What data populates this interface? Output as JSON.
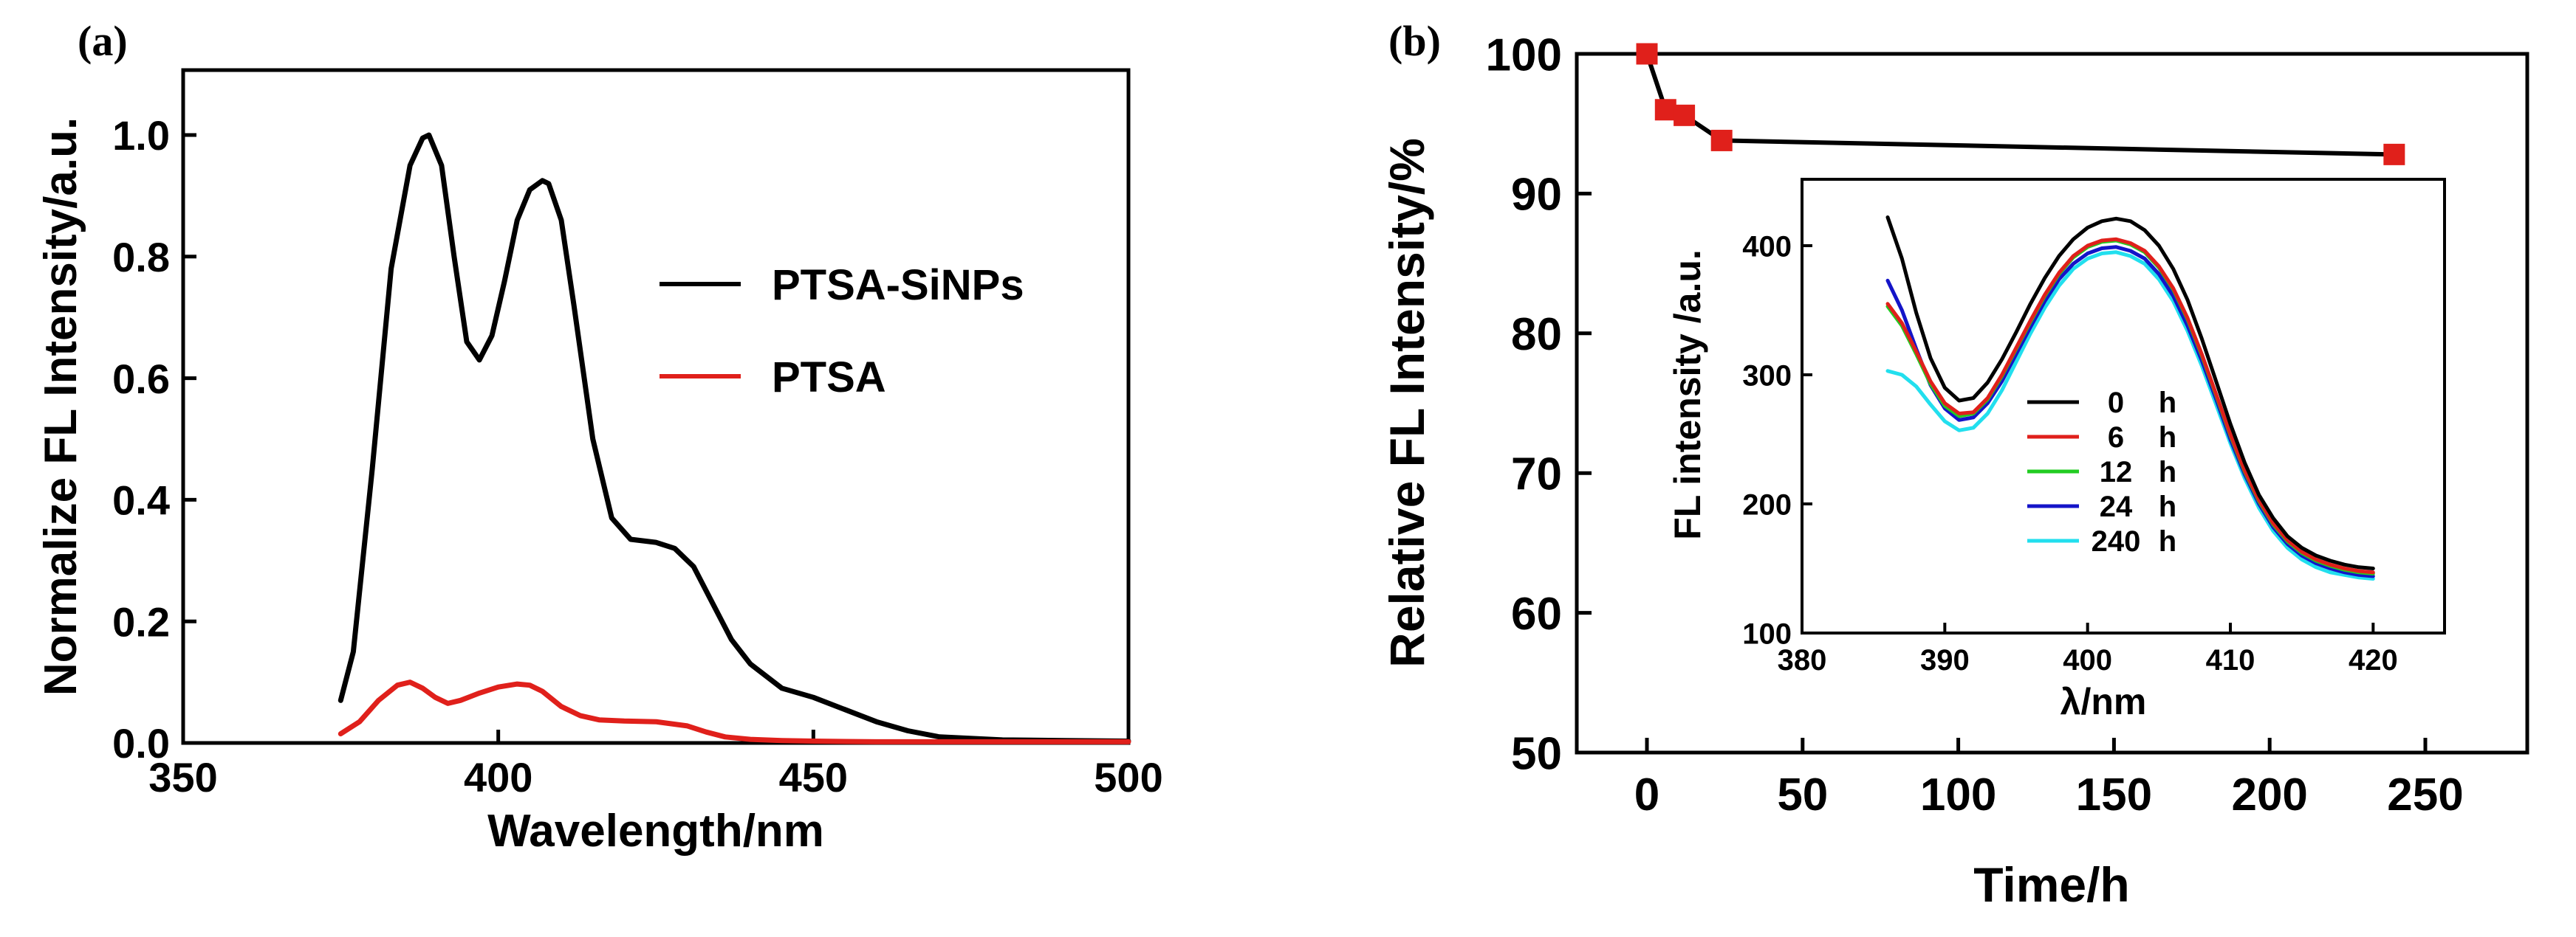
{
  "chart_data": [
    {
      "panel_label": "(a)",
      "type": "line",
      "title": "",
      "xlabel": "Wavelength/nm",
      "ylabel": "Normalize FL Intensity/a.u.",
      "xlim": [
        350,
        500
      ],
      "ylim": [
        0.0,
        1.1
      ],
      "xticks": [
        "350",
        "400",
        "450",
        "500"
      ],
      "yticks": [
        "0.0",
        "0.2",
        "0.4",
        "0.6",
        "0.8",
        "1.0"
      ],
      "legend_position": "center-right",
      "series": [
        {
          "name": "PTSA-SiNPs",
          "color": "#000000",
          "x": [
            375,
            377,
            380,
            383,
            386,
            388,
            389,
            391,
            393,
            395,
            397,
            399,
            401,
            403,
            405,
            407,
            408,
            410,
            412,
            415,
            418,
            421,
            425,
            428,
            431,
            434,
            437,
            440,
            445,
            450,
            455,
            460,
            465,
            470,
            480,
            490,
            500
          ],
          "y": [
            0.07,
            0.15,
            0.45,
            0.78,
            0.95,
            0.995,
            1.0,
            0.95,
            0.8,
            0.66,
            0.63,
            0.67,
            0.76,
            0.86,
            0.91,
            0.925,
            0.92,
            0.86,
            0.72,
            0.5,
            0.37,
            0.335,
            0.33,
            0.32,
            0.29,
            0.23,
            0.17,
            0.13,
            0.09,
            0.075,
            0.055,
            0.035,
            0.02,
            0.01,
            0.005,
            0.004,
            0.003
          ]
        },
        {
          "name": "PTSA",
          "color": "#e0201b",
          "x": [
            375,
            378,
            381,
            384,
            386,
            388,
            390,
            392,
            394,
            397,
            400,
            403,
            405,
            407,
            410,
            413,
            416,
            420,
            425,
            430,
            433,
            436,
            440,
            445,
            450,
            460,
            470,
            480,
            490,
            500
          ],
          "y": [
            0.015,
            0.035,
            0.07,
            0.095,
            0.1,
            0.09,
            0.075,
            0.065,
            0.07,
            0.082,
            0.092,
            0.097,
            0.095,
            0.085,
            0.06,
            0.045,
            0.038,
            0.036,
            0.035,
            0.028,
            0.018,
            0.01,
            0.006,
            0.004,
            0.003,
            0.002,
            0.002,
            0.002,
            0.002,
            0.002
          ]
        }
      ]
    },
    {
      "panel_label": "(b)",
      "type": "line",
      "title": "",
      "xlabel": "Time/h",
      "ylabel": "Relative FL Intensity/%",
      "xlim": [
        -30,
        290
      ],
      "ylim": [
        50,
        100
      ],
      "xticks": [
        "0",
        "50",
        "100",
        "150",
        "200",
        "250"
      ],
      "yticks": [
        "50",
        "60",
        "70",
        "80",
        "90",
        "100"
      ],
      "series": [
        {
          "name": "Relative FL Intensity",
          "color": "#000000",
          "marker_color": "#e0201b",
          "x": [
            0,
            6,
            12,
            24,
            240
          ],
          "y": [
            100,
            96.0,
            95.6,
            93.8,
            92.8
          ]
        }
      ],
      "inset": {
        "type": "line",
        "xlabel": "λ/nm",
        "ylabel": "FL intensity /a.u.",
        "xlim": [
          380,
          425
        ],
        "ylim": [
          100,
          450
        ],
        "xticks": [
          "380",
          "390",
          "400",
          "410",
          "420"
        ],
        "yticks": [
          "100",
          "200",
          "300",
          "400"
        ],
        "x": [
          386,
          387,
          388,
          389,
          390,
          391,
          392,
          393,
          394,
          395,
          396,
          397,
          398,
          399,
          400,
          401,
          402,
          403,
          404,
          405,
          406,
          407,
          408,
          409,
          410,
          411,
          412,
          413,
          414,
          415,
          416,
          417,
          418,
          419,
          420
        ],
        "legend_position": "center",
        "series": [
          {
            "name": "0",
            "unit": "h",
            "color": "#000000",
            "y": [
              422,
              390,
              348,
              313,
              290,
              280,
              282,
              294,
              312,
              333,
              355,
              375,
              392,
              405,
              414,
              419,
              421,
              419,
              412,
              400,
              382,
              358,
              328,
              295,
              262,
              232,
              207,
              189,
              175,
              166,
              160,
              156,
              153,
              151,
              150
            ]
          },
          {
            "name": "6",
            "unit": "h",
            "color": "#e0201b",
            "y": [
              355,
              340,
              318,
              295,
              278,
              270,
              271,
              282,
              300,
              321,
              342,
              362,
              379,
              392,
              400,
              404,
              405,
              402,
              396,
              384,
              367,
              344,
              316,
              285,
              254,
              226,
              203,
              185,
              172,
              163,
              157,
              153,
              150,
              148,
              147
            ]
          },
          {
            "name": "12",
            "unit": "h",
            "color": "#22cc22",
            "y": [
              353,
              338,
              316,
              293,
              276,
              268,
              270,
              281,
              299,
              320,
              341,
              361,
              378,
              391,
              399,
              403,
              404,
              401,
              395,
              383,
              366,
              343,
              315,
              284,
              253,
              225,
              202,
              184,
              171,
              162,
              156,
              152,
              149,
              147,
              146
            ]
          },
          {
            "name": "24",
            "unit": "h",
            "color": "#1414c8",
            "y": [
              373,
              350,
              320,
              292,
              274,
              265,
              267,
              278,
              295,
              316,
              337,
              357,
              374,
              386,
              394,
              398,
              399,
              396,
              390,
              378,
              361,
              338,
              311,
              281,
              250,
              223,
              200,
              182,
              169,
              160,
              154,
              150,
              147,
              145,
              144
            ]
          },
          {
            "name": "240",
            "unit": "h",
            "color": "#22dfee",
            "y": [
              303,
              300,
              291,
              277,
              264,
              257,
              259,
              270,
              288,
              310,
              332,
              352,
              369,
              382,
              390,
              394,
              395,
              392,
              386,
              374,
              357,
              334,
              307,
              277,
              247,
              220,
              197,
              179,
              166,
              157,
              151,
              147,
              145,
              143,
              142
            ]
          }
        ]
      }
    }
  ]
}
